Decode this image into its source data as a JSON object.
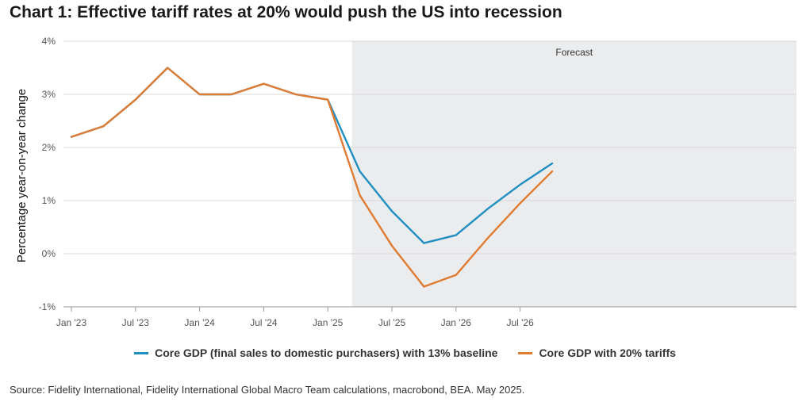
{
  "title": "Chart 1: Effective tariff rates at 20% would push the US into recession",
  "source": "Source: Fidelity International, Fidelity International Global Macro Team calculations, macrobond, BEA. May 2025.",
  "colors": {
    "baseline": "#1f8fc2",
    "tariffs": "#e07b32",
    "forecast_band": "#ebecee",
    "grid": "#d9d9d9"
  },
  "chart_data": {
    "type": "line",
    "title": "Chart 1: Effective tariff rates at 20% would push the US into recession",
    "xlabel": "",
    "ylabel": "Percentage year-on-year change",
    "ylim": [
      -1,
      4
    ],
    "yticks": [
      "-1%",
      "0%",
      "1%",
      "2%",
      "3%",
      "4%"
    ],
    "ytick_values": [
      -1,
      0,
      1,
      2,
      3,
      4
    ],
    "xticks": [
      "Jan '23",
      "Jul '23",
      "Jan '24",
      "Jul '24",
      "Jan '25",
      "Jul '25",
      "Jan '26",
      "Jul '26"
    ],
    "x_axis_unit": "quarter",
    "x_start": "2023-Q1",
    "x_end": "2026-Q4",
    "x": [
      "2023-Q1",
      "2023-Q2",
      "2023-Q3",
      "2023-Q4",
      "2024-Q1",
      "2024-Q2",
      "2024-Q3",
      "2024-Q4",
      "2025-Q1",
      "2025-Q2",
      "2025-Q3",
      "2025-Q4",
      "2026-Q1",
      "2026-Q2",
      "2026-Q3",
      "2026-Q4"
    ],
    "forecast_region": {
      "label": "Forecast",
      "from": "2025-Q2",
      "to": "2026-Q4"
    },
    "grid": true,
    "legend_position": "bottom",
    "series": [
      {
        "name": "Core GDP (final sales to domestic purchasers) with 13% baseline",
        "color": "#1f8fc2",
        "values": [
          2.2,
          2.4,
          2.9,
          3.5,
          3.0,
          3.0,
          3.2,
          3.0,
          2.9,
          1.55,
          0.8,
          0.2,
          0.35,
          0.85,
          1.3,
          1.7
        ]
      },
      {
        "name": "Core GDP with 20% tariffs",
        "color": "#e07b32",
        "values": [
          2.2,
          2.4,
          2.9,
          3.5,
          3.0,
          3.0,
          3.2,
          3.0,
          2.9,
          1.1,
          0.15,
          -0.62,
          -0.4,
          0.3,
          0.95,
          1.55
        ]
      }
    ]
  }
}
